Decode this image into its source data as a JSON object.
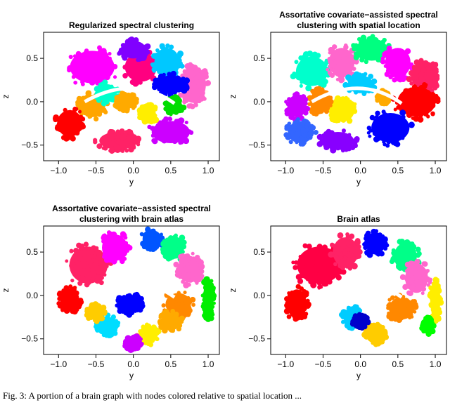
{
  "chart_data": [
    {
      "type": "scatter",
      "title_lines": [
        "Regularized spectral clustering"
      ],
      "xlabel": "y",
      "ylabel": "z",
      "xlim": [
        -1.2,
        1.15
      ],
      "ylim": [
        -0.68,
        0.8
      ],
      "xticks": [
        -1.0,
        -0.5,
        0.0,
        0.5,
        1.0
      ],
      "xtick_labels": [
        "−1.0",
        "−0.5",
        "0.0",
        "0.5",
        "1.0"
      ],
      "yticks": [
        -0.5,
        0.0,
        0.5
      ],
      "ytick_labels": [
        "−0.5",
        "0.0",
        "0.5"
      ],
      "clusters": [
        {
          "color": "#ff00ff",
          "x": -0.55,
          "y": 0.4,
          "rx": 0.35,
          "ry": 0.22
        },
        {
          "color": "#ff0080",
          "x": 0.1,
          "y": 0.4,
          "rx": 0.25,
          "ry": 0.2
        },
        {
          "color": "#00c8ff",
          "x": 0.45,
          "y": 0.45,
          "rx": 0.2,
          "ry": 0.2
        },
        {
          "color": "#ff66cc",
          "x": 0.8,
          "y": 0.2,
          "rx": 0.2,
          "ry": 0.25
        },
        {
          "color": "#0000ff",
          "x": 0.5,
          "y": 0.2,
          "rx": 0.25,
          "ry": 0.12
        },
        {
          "color": "#ffa500",
          "x": -0.55,
          "y": -0.05,
          "rx": 0.2,
          "ry": 0.15
        },
        {
          "color": "#ff0000",
          "x": -0.85,
          "y": -0.25,
          "rx": 0.2,
          "ry": 0.18
        },
        {
          "color": "#ff2266",
          "x": -0.2,
          "y": -0.45,
          "rx": 0.3,
          "ry": 0.12
        },
        {
          "color": "#cc00ff",
          "x": 0.5,
          "y": -0.35,
          "rx": 0.3,
          "ry": 0.15
        },
        {
          "color": "#00ffcc",
          "x": -0.35,
          "y": 0.1,
          "rx": 0.15,
          "ry": 0.12
        },
        {
          "color": "#ffee00",
          "x": 0.2,
          "y": -0.15,
          "rx": 0.12,
          "ry": 0.12
        },
        {
          "color": "#00dd00",
          "x": 0.55,
          "y": -0.05,
          "rx": 0.12,
          "ry": 0.1
        },
        {
          "color": "#8000ff",
          "x": 0.0,
          "y": 0.6,
          "rx": 0.2,
          "ry": 0.12
        },
        {
          "color": "#ffaa00",
          "x": -0.1,
          "y": 0.0,
          "rx": 0.15,
          "ry": 0.1
        }
      ]
    },
    {
      "type": "scatter",
      "title_lines": [
        "Assortative covariate−assisted spectral",
        "clustering with spatial location"
      ],
      "xlabel": "y",
      "ylabel": "z",
      "xlim": [
        -1.2,
        1.15
      ],
      "ylim": [
        -0.68,
        0.8
      ],
      "xticks": [
        -1.0,
        -0.5,
        0.0,
        0.5,
        1.0
      ],
      "xtick_labels": [
        "−1.0",
        "−0.5",
        "0.0",
        "0.5",
        "1.0"
      ],
      "yticks": [
        -0.5,
        0.0,
        0.5
      ],
      "ytick_labels": [
        "−0.5",
        "0.0",
        "0.5"
      ],
      "clusters": [
        {
          "color": "#00ffcc",
          "x": -0.65,
          "y": 0.35,
          "rx": 0.25,
          "ry": 0.2
        },
        {
          "color": "#ff66cc",
          "x": -0.25,
          "y": 0.45,
          "rx": 0.2,
          "ry": 0.2
        },
        {
          "color": "#00ff80",
          "x": 0.15,
          "y": 0.6,
          "rx": 0.25,
          "ry": 0.15
        },
        {
          "color": "#ff00ff",
          "x": 0.5,
          "y": 0.45,
          "rx": 0.2,
          "ry": 0.2
        },
        {
          "color": "#ff2266",
          "x": 0.85,
          "y": 0.3,
          "rx": 0.2,
          "ry": 0.2
        },
        {
          "color": "#ff0000",
          "x": 0.75,
          "y": 0.0,
          "rx": 0.3,
          "ry": 0.2
        },
        {
          "color": "#0000ff",
          "x": 0.4,
          "y": -0.3,
          "rx": 0.3,
          "ry": 0.2
        },
        {
          "color": "#00ccff",
          "x": 0.0,
          "y": 0.2,
          "rx": 0.2,
          "ry": 0.12
        },
        {
          "color": "#ffee00",
          "x": -0.25,
          "y": -0.1,
          "rx": 0.2,
          "ry": 0.15
        },
        {
          "color": "#ff8800",
          "x": -0.55,
          "y": 0.0,
          "rx": 0.15,
          "ry": 0.15
        },
        {
          "color": "#cc00ff",
          "x": -0.85,
          "y": -0.05,
          "rx": 0.15,
          "ry": 0.15
        },
        {
          "color": "#3366ff",
          "x": -0.8,
          "y": -0.35,
          "rx": 0.2,
          "ry": 0.15
        },
        {
          "color": "#8800ff",
          "x": -0.3,
          "y": -0.45,
          "rx": 0.25,
          "ry": 0.12
        },
        {
          "color": "#ffaa00",
          "x": 0.3,
          "y": 0.05,
          "rx": 0.08,
          "ry": 0.08
        }
      ]
    },
    {
      "type": "scatter",
      "title_lines": [
        "Assortative covariate−assisted spectral",
        "clustering with brain atlas"
      ],
      "xlabel": "y",
      "ylabel": "z",
      "xlim": [
        -1.2,
        1.15
      ],
      "ylim": [
        -0.68,
        0.8
      ],
      "xticks": [
        -1.0,
        -0.5,
        0.0,
        0.5,
        1.0
      ],
      "xtick_labels": [
        "−1.0",
        "−0.5",
        "0.0",
        "0.5",
        "1.0"
      ],
      "yticks": [
        -0.5,
        0.0,
        0.5
      ],
      "ytick_labels": [
        "−0.5",
        "0.0",
        "0.5"
      ],
      "clusters": [
        {
          "color": "#ff2266",
          "x": -0.6,
          "y": 0.35,
          "rx": 0.3,
          "ry": 0.25
        },
        {
          "color": "#ff00ff",
          "x": -0.25,
          "y": 0.55,
          "rx": 0.2,
          "ry": 0.18
        },
        {
          "color": "#0055ff",
          "x": 0.25,
          "y": 0.65,
          "rx": 0.15,
          "ry": 0.12
        },
        {
          "color": "#00ff88",
          "x": 0.55,
          "y": 0.55,
          "rx": 0.15,
          "ry": 0.15
        },
        {
          "color": "#ff66cc",
          "x": 0.75,
          "y": 0.3,
          "rx": 0.18,
          "ry": 0.18
        },
        {
          "color": "#ff8800",
          "x": 0.6,
          "y": -0.1,
          "rx": 0.2,
          "ry": 0.15
        },
        {
          "color": "#00ee00",
          "x": 1.0,
          "y": -0.05,
          "rx": 0.08,
          "ry": 0.25
        },
        {
          "color": "#0000ff",
          "x": -0.05,
          "y": -0.1,
          "rx": 0.18,
          "ry": 0.12
        },
        {
          "color": "#ffee00",
          "x": 0.2,
          "y": -0.45,
          "rx": 0.15,
          "ry": 0.12
        },
        {
          "color": "#ffaa00",
          "x": 0.5,
          "y": -0.3,
          "rx": 0.15,
          "ry": 0.12
        },
        {
          "color": "#cc00ff",
          "x": 0.0,
          "y": -0.55,
          "rx": 0.12,
          "ry": 0.08
        },
        {
          "color": "#00ddff",
          "x": -0.35,
          "y": -0.35,
          "rx": 0.15,
          "ry": 0.12
        },
        {
          "color": "#ff0000",
          "x": -0.85,
          "y": -0.05,
          "rx": 0.15,
          "ry": 0.15
        },
        {
          "color": "#ffcc00",
          "x": -0.5,
          "y": -0.2,
          "rx": 0.12,
          "ry": 0.1
        }
      ]
    },
    {
      "type": "scatter",
      "title_lines": [
        "Brain atlas"
      ],
      "xlabel": "y",
      "ylabel": "z",
      "xlim": [
        -1.2,
        1.15
      ],
      "ylim": [
        -0.68,
        0.8
      ],
      "xticks": [
        -1.0,
        -0.5,
        0.0,
        0.5,
        1.0
      ],
      "xtick_labels": [
        "−1.0",
        "−0.5",
        "0.0",
        "0.5",
        "1.0"
      ],
      "yticks": [
        -0.5,
        0.0,
        0.5
      ],
      "ytick_labels": [
        "−0.5",
        "0.0",
        "0.5"
      ],
      "clusters": [
        {
          "color": "#ff0044",
          "x": -0.55,
          "y": 0.35,
          "rx": 0.35,
          "ry": 0.25
        },
        {
          "color": "#ff2266",
          "x": -0.2,
          "y": 0.5,
          "rx": 0.2,
          "ry": 0.2
        },
        {
          "color": "#0000ff",
          "x": 0.2,
          "y": 0.6,
          "rx": 0.15,
          "ry": 0.15
        },
        {
          "color": "#00ff88",
          "x": 0.6,
          "y": 0.45,
          "rx": 0.18,
          "ry": 0.18
        },
        {
          "color": "#ff66cc",
          "x": 0.75,
          "y": 0.2,
          "rx": 0.18,
          "ry": 0.2
        },
        {
          "color": "#ff8800",
          "x": 0.55,
          "y": -0.15,
          "rx": 0.2,
          "ry": 0.15
        },
        {
          "color": "#ffee00",
          "x": 1.0,
          "y": -0.05,
          "rx": 0.08,
          "ry": 0.25
        },
        {
          "color": "#00ccff",
          "x": -0.1,
          "y": -0.25,
          "rx": 0.15,
          "ry": 0.12
        },
        {
          "color": "#ffcc00",
          "x": 0.2,
          "y": -0.45,
          "rx": 0.15,
          "ry": 0.12
        },
        {
          "color": "#0000cc",
          "x": 0.0,
          "y": -0.3,
          "rx": 0.1,
          "ry": 0.08
        },
        {
          "color": "#ff0000",
          "x": -0.85,
          "y": -0.1,
          "rx": 0.15,
          "ry": 0.2
        },
        {
          "color": "#00ff00",
          "x": 0.9,
          "y": -0.35,
          "rx": 0.08,
          "ry": 0.1
        }
      ]
    }
  ],
  "caption": "Fig. 3: A portion of a brain graph with nodes colored relative to spatial location ..."
}
